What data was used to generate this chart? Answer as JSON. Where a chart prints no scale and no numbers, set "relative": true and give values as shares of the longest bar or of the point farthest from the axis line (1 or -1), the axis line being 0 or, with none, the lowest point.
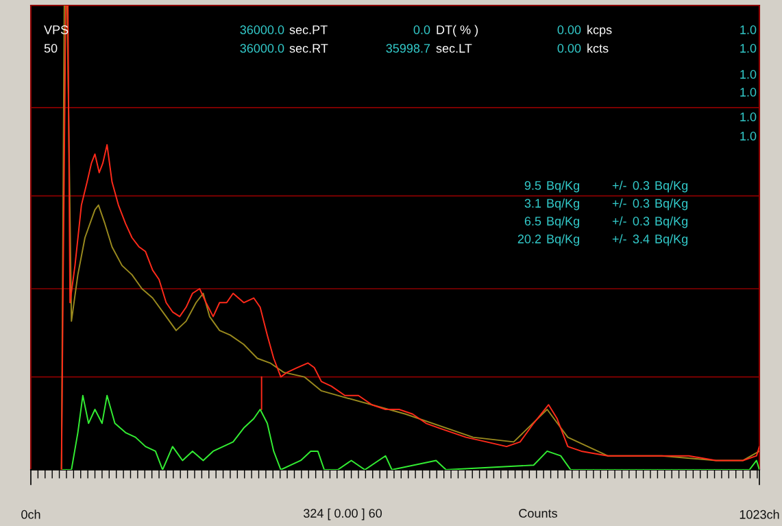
{
  "chart_data": {
    "type": "line",
    "relative": true,
    "xlim": [
      0,
      1023
    ],
    "xticks": [
      {
        "value": 0,
        "label": "0ch"
      },
      {
        "value": 1023,
        "label": "1023ch"
      }
    ],
    "series": [
      {
        "color": "#ff2a1a",
        "x": [
          43,
          45,
          49,
          52,
          55,
          62,
          71,
          79,
          85,
          90,
          96,
          101,
          107,
          114,
          123,
          133,
          142,
          152,
          161,
          171,
          180,
          190,
          199,
          209,
          218,
          227,
          237,
          246,
          256,
          265,
          275,
          284,
          299,
          313,
          322,
          332,
          341,
          351,
          360,
          374,
          389,
          398,
          408,
          422,
          441,
          460,
          479,
          498,
          517,
          536,
          555,
          573,
          592,
          611,
          640,
          668,
          687,
          706,
          727,
          739,
          754,
          773,
          810,
          848,
          886,
          924,
          962,
          1000,
          1019,
          1023
        ],
        "values": [
          0,
          0.35,
          1.0,
          1.0,
          0.36,
          0.44,
          0.57,
          0.62,
          0.66,
          0.68,
          0.64,
          0.66,
          0.7,
          0.62,
          0.57,
          0.53,
          0.5,
          0.48,
          0.47,
          0.43,
          0.41,
          0.36,
          0.34,
          0.33,
          0.35,
          0.38,
          0.39,
          0.36,
          0.33,
          0.36,
          0.36,
          0.38,
          0.36,
          0.37,
          0.35,
          0.29,
          0.24,
          0.2,
          0.21,
          0.22,
          0.23,
          0.22,
          0.19,
          0.18,
          0.16,
          0.16,
          0.14,
          0.13,
          0.13,
          0.12,
          0.1,
          0.09,
          0.08,
          0.07,
          0.06,
          0.05,
          0.06,
          0.1,
          0.14,
          0.11,
          0.05,
          0.04,
          0.03,
          0.03,
          0.03,
          0.03,
          0.02,
          0.02,
          0.03,
          0.05
        ]
      },
      {
        "color": "#9a8a1e",
        "x": [
          43,
          47,
          51,
          57,
          66,
          76,
          90,
          95,
          104,
          114,
          128,
          142,
          156,
          171,
          190,
          204,
          218,
          232,
          242,
          251,
          265,
          280,
          299,
          318,
          336,
          355,
          384,
          408,
          431,
          526,
          621,
          678,
          725,
          754,
          810,
          886,
          962,
          1000,
          1023
        ],
        "values": [
          0,
          1.0,
          1.0,
          0.32,
          0.42,
          0.5,
          0.56,
          0.57,
          0.53,
          0.48,
          0.44,
          0.42,
          0.39,
          0.37,
          0.33,
          0.3,
          0.32,
          0.36,
          0.38,
          0.33,
          0.3,
          0.29,
          0.27,
          0.24,
          0.23,
          0.21,
          0.2,
          0.17,
          0.16,
          0.12,
          0.07,
          0.06,
          0.13,
          0.07,
          0.03,
          0.03,
          0.02,
          0.02,
          0.04
        ]
      },
      {
        "color": "#33ee33",
        "x": [
          43,
          57,
          66,
          73,
          81,
          90,
          100,
          107,
          118,
          133,
          147,
          161,
          175,
          185,
          199,
          213,
          227,
          242,
          256,
          270,
          284,
          299,
          313,
          322,
          332,
          341,
          351,
          365,
          379,
          393,
          403,
          412,
          431,
          450,
          469,
          498,
          507,
          569,
          583,
          706,
          725,
          744,
          758,
          1009,
          1019,
          1023
        ],
        "values": [
          0,
          0,
          0.08,
          0.16,
          0.1,
          0.13,
          0.1,
          0.16,
          0.1,
          0.08,
          0.07,
          0.05,
          0.04,
          0,
          0.05,
          0.02,
          0.04,
          0.02,
          0.04,
          0.05,
          0.06,
          0.09,
          0.11,
          0.13,
          0.1,
          0.04,
          0,
          0.01,
          0.02,
          0.04,
          0.04,
          0,
          0,
          0.02,
          0,
          0.03,
          0,
          0.02,
          0,
          0.01,
          0.04,
          0.03,
          0,
          0,
          0.02,
          0
        ]
      },
      {
        "color": "#ff2a1a",
        "x": [
          324,
          324
        ],
        "values": [
          0.2,
          0.13
        ]
      }
    ],
    "ref_lines": [
      {
        "axis": "y",
        "value": 0.2,
        "color": "#8b0000"
      },
      {
        "axis": "y",
        "value": 0.39,
        "color": "#8b0000"
      },
      {
        "axis": "y",
        "value": 0.59,
        "color": "#8b0000"
      },
      {
        "axis": "y",
        "value": 0.78,
        "color": "#8b0000"
      }
    ],
    "annotations": [
      "VPS",
      "50",
      "36000.0",
      "sec.PT",
      "36000.0",
      "sec.RT",
      "0.0",
      "DT( % )",
      "35998.7",
      "sec.LT",
      "0.00",
      "kcps",
      "0.00",
      "kcts",
      "1.0",
      "1.0",
      "1.0",
      "1.0",
      "1.0",
      "1.0",
      "9.5",
      "Bq/Kg",
      "+/-",
      "0.3",
      "Bq/Kg",
      "3.1",
      "Bq/Kg",
      "+/-",
      "0.3",
      "Bq/Kg",
      "6.5",
      "Bq/Kg",
      "+/-",
      "0.3",
      "Bq/Kg",
      "20.2",
      "Bq/Kg",
      "+/-",
      "3.4",
      "Bq/Kg",
      "324 [ 0.00 ] 60",
      "Counts"
    ]
  }
}
